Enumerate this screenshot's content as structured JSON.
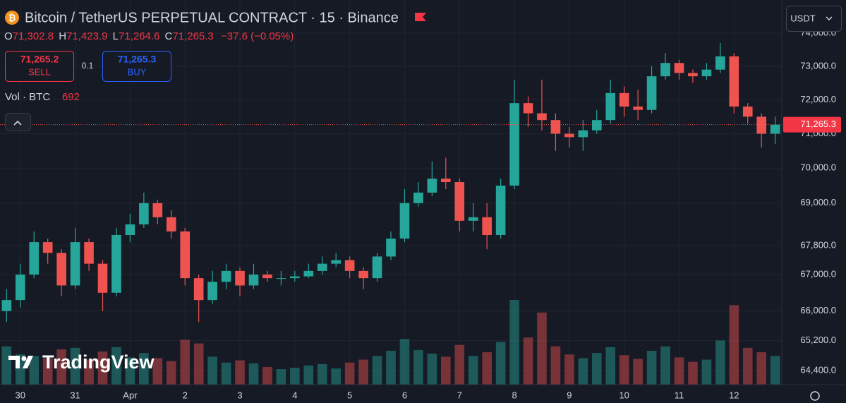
{
  "header": {
    "symbol": "Bitcoin / TetherUS PERPETUAL CONTRACT · 15 · Binance",
    "ohlc": [
      {
        "key": "O",
        "value": "71,302.8"
      },
      {
        "key": "H",
        "value": "71,423.9"
      },
      {
        "key": "L",
        "value": "71,264.6"
      },
      {
        "key": "C",
        "value": "71,265.3"
      }
    ],
    "change": "−37.6 (−0.05%)"
  },
  "trade": {
    "sell_price": "71,265.2",
    "sell": "SELL",
    "quantity": "0.1",
    "buy_price": "71,265.3",
    "buy": "BUY"
  },
  "volume_legend": {
    "label": "Vol · BTC",
    "value": "692"
  },
  "currency": "USDT",
  "watermark": "TradingView",
  "chart_data": {
    "type": "candlestick",
    "x": [
      -0.25,
      0,
      0.25,
      0.5,
      0.75,
      1,
      1.25,
      1.5,
      1.75,
      2,
      2.25,
      2.5,
      2.75,
      3,
      3.25,
      3.5,
      3.75,
      4,
      4.25,
      4.5,
      4.75,
      5,
      5.25,
      5.5,
      5.75,
      6,
      6.25,
      6.5,
      6.75,
      7,
      7.25,
      7.5,
      7.75,
      8,
      8.25,
      8.5,
      8.75,
      9,
      9.25,
      9.5,
      9.75,
      10,
      10.25,
      10.5,
      10.75,
      11,
      11.25,
      11.5,
      11.75,
      12,
      12.25,
      12.5,
      12.75,
      13,
      13.25,
      13.5,
      13.75
    ],
    "open": [
      66000,
      66300,
      67000,
      67900,
      67600,
      66700,
      67900,
      67300,
      66500,
      68100,
      68400,
      69000,
      68600,
      68200,
      66900,
      66300,
      66800,
      67100,
      66700,
      67000,
      66900,
      66900,
      66950,
      67100,
      67300,
      67400,
      67100,
      66900,
      67500,
      68000,
      69000,
      69300,
      69700,
      69600,
      68500,
      68600,
      68100,
      69500,
      71900,
      71600,
      71400,
      71000,
      70900,
      71100,
      71400,
      72200,
      71800,
      71700,
      72700,
      73100,
      72800,
      72700,
      72900,
      73300,
      71800,
      71500,
      71000
    ],
    "high": [
      66600,
      67300,
      68200,
      68000,
      67700,
      68300,
      68000,
      67400,
      68300,
      68700,
      69300,
      69100,
      68800,
      68300,
      67000,
      67100,
      67300,
      67200,
      67300,
      67100,
      67100,
      67100,
      67300,
      67500,
      67600,
      67500,
      67200,
      67600,
      68200,
      69400,
      69600,
      70200,
      70300,
      69700,
      69000,
      69000,
      69700,
      72600,
      72100,
      72600,
      71600,
      71200,
      71400,
      71700,
      72600,
      72400,
      72300,
      73000,
      73400,
      73200,
      72900,
      73100,
      73700,
      73400,
      71900,
      71600,
      71500
    ],
    "low": [
      65700,
      66100,
      66900,
      67300,
      66400,
      66600,
      67100,
      66000,
      66400,
      67900,
      68300,
      68400,
      68000,
      66700,
      65700,
      66200,
      66600,
      66400,
      66600,
      66800,
      66700,
      66800,
      66900,
      67000,
      67200,
      66900,
      66600,
      66800,
      67400,
      67900,
      68900,
      69200,
      69400,
      68200,
      68200,
      67700,
      68000,
      69400,
      71200,
      71100,
      70500,
      70600,
      70500,
      71000,
      71300,
      71500,
      71400,
      71600,
      72600,
      72600,
      72500,
      72600,
      72800,
      71600,
      71300,
      70600,
      70700
    ],
    "close": [
      66300,
      67000,
      67900,
      67600,
      66700,
      67900,
      67300,
      66500,
      68100,
      68400,
      69000,
      68600,
      68200,
      66900,
      66300,
      66800,
      67100,
      66700,
      67000,
      66900,
      66900,
      66950,
      67100,
      67300,
      67400,
      67100,
      66900,
      67500,
      68000,
      69000,
      69300,
      69700,
      69600,
      68500,
      68600,
      68100,
      69500,
      71900,
      71600,
      71400,
      71000,
      70900,
      71100,
      71400,
      72200,
      71800,
      71700,
      72700,
      73100,
      72800,
      72700,
      72900,
      73300,
      71800,
      71500,
      71000,
      71265.3
    ],
    "volume": [
      5200,
      4100,
      3900,
      3600,
      4800,
      5000,
      3400,
      4500,
      5100,
      3700,
      4300,
      3600,
      3200,
      6100,
      5600,
      3800,
      3000,
      3300,
      2900,
      2400,
      2100,
      2300,
      2600,
      2800,
      2200,
      3000,
      3400,
      3900,
      4600,
      6200,
      4700,
      4200,
      3800,
      5400,
      3900,
      4400,
      5800,
      11500,
      6400,
      9800,
      5200,
      4100,
      3600,
      4300,
      5100,
      4000,
      3500,
      4600,
      5200,
      3700,
      3100,
      3400,
      6000,
      10800,
      5000,
      4400,
      3900
    ],
    "colors": {
      "up": "#26a69a",
      "down": "#ef5350"
    },
    "last_price": {
      "value": 71265.3,
      "label": "71,265.3"
    },
    "xlim": [
      -0.37,
      13.87
    ],
    "xticks": [
      {
        "value": 0,
        "label": "30"
      },
      {
        "value": 1,
        "label": "31"
      },
      {
        "value": 2,
        "label": "Apr"
      },
      {
        "value": 3,
        "label": "2"
      },
      {
        "value": 4,
        "label": "3"
      },
      {
        "value": 5,
        "label": "4"
      },
      {
        "value": 6,
        "label": "5"
      },
      {
        "value": 7,
        "label": "6"
      },
      {
        "value": 8,
        "label": "7"
      },
      {
        "value": 9,
        "label": "8"
      },
      {
        "value": 10,
        "label": "9"
      },
      {
        "value": 11,
        "label": "10"
      },
      {
        "value": 12,
        "label": "11"
      },
      {
        "value": 13,
        "label": "12"
      }
    ],
    "ylim": [
      64030,
      75020
    ],
    "yticks": [
      {
        "value": 74000,
        "label": "74,000.0"
      },
      {
        "value": 73000,
        "label": "73,000.0"
      },
      {
        "value": 72000,
        "label": "72,000.0"
      },
      {
        "value": 71000,
        "label": "71,000.0"
      },
      {
        "value": 70000,
        "label": "70,000.0"
      },
      {
        "value": 69000,
        "label": "69,000.0"
      },
      {
        "value": 67800,
        "label": "67,800.0"
      },
      {
        "value": 67000,
        "label": "67,000.0"
      },
      {
        "value": 66000,
        "label": "66,000.0"
      },
      {
        "value": 65200,
        "label": "65,200.0"
      },
      {
        "value": 64400,
        "label": "64,400.0"
      }
    ],
    "log_scale": true,
    "grid": true
  }
}
